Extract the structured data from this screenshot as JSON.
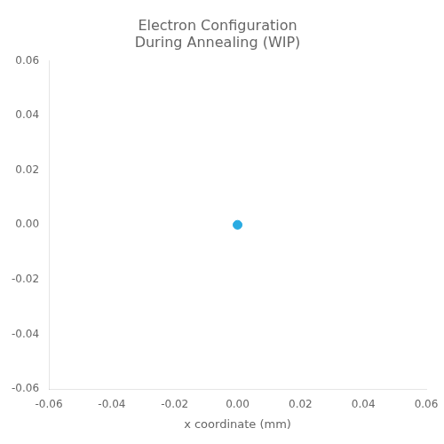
{
  "chart_data": {
    "type": "scatter",
    "title": "Electron Configuration\nDuring Annealing (WIP)",
    "xlabel": "x coordinate (mm)",
    "x": [
      0.0
    ],
    "values": [
      0.0
    ],
    "color": "#29ABE2",
    "xlim": [
      -0.06,
      0.06
    ],
    "ylim": [
      -0.06,
      0.06
    ],
    "xticks": [
      -0.06,
      -0.04,
      -0.02,
      {
        "value": 0.0,
        "label": "0.00"
      },
      0.02,
      0.04,
      0.06
    ],
    "yticks": [
      -0.06,
      -0.04,
      -0.02,
      {
        "value": 0.0,
        "label": "0.00"
      },
      0.02,
      0.04,
      0.06
    ],
    "grid": false
  }
}
